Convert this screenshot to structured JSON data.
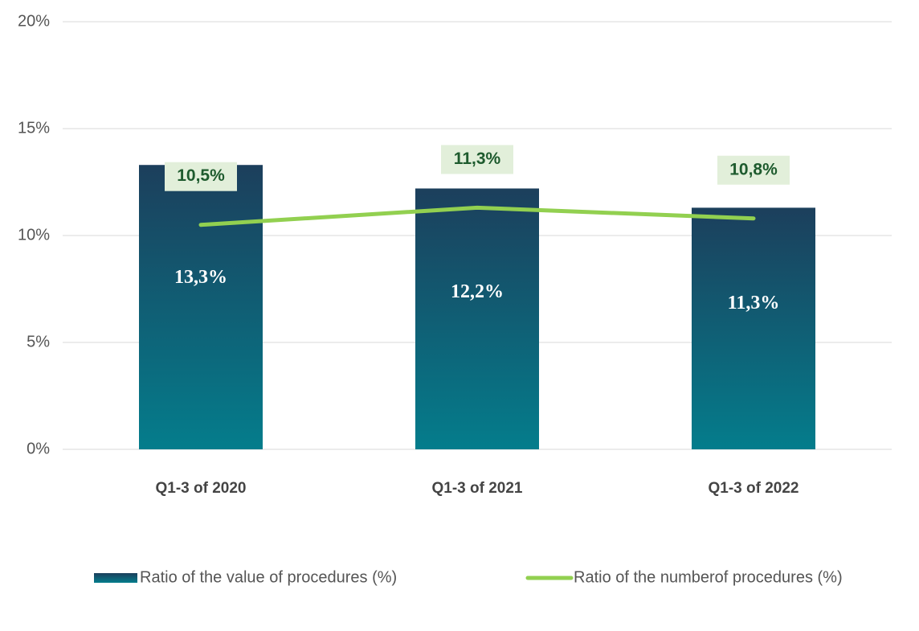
{
  "chart_data": {
    "type": "bar",
    "categories": [
      "Q1-3 of 2020",
      "Q1-3 of 2021",
      "Q1-3 of 2022"
    ],
    "series": [
      {
        "name": "Ratio of the value of procedures (%)",
        "type": "bar",
        "color": "#1c3f5c",
        "gradient_end": "#047d8c",
        "values": [
          13.3,
          12.2,
          11.3
        ],
        "value_labels": [
          "13,3%",
          "12,2%",
          "11,3%"
        ]
      },
      {
        "name": "Ratio of the numberof procedures (%)",
        "type": "line",
        "color": "#92d050",
        "values": [
          10.5,
          11.3,
          10.8
        ],
        "value_labels": [
          "10,5%",
          "11,3%",
          "10,8%"
        ]
      }
    ],
    "ylim": [
      0,
      20
    ],
    "yticks": [
      {
        "value": 0,
        "label": "0%"
      },
      {
        "value": 5,
        "label": "5%"
      },
      {
        "value": 10,
        "label": "10%"
      },
      {
        "value": 15,
        "label": "15%"
      },
      {
        "value": 20,
        "label": "20%"
      }
    ],
    "grid": true,
    "legend": "bottom"
  }
}
